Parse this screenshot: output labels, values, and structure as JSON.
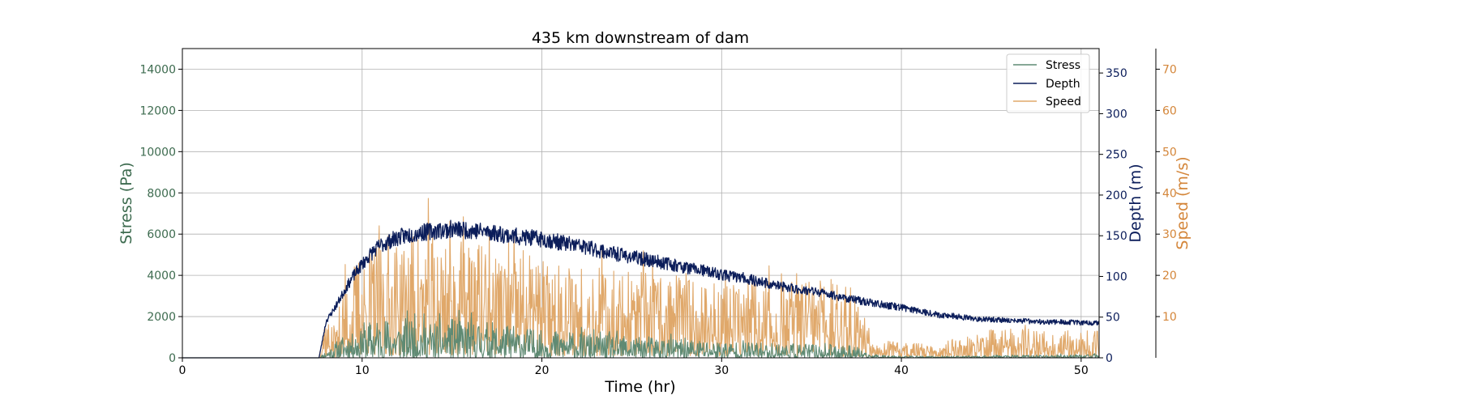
{
  "chart_data": {
    "type": "line",
    "title": "435 km downstream of dam",
    "xlabel": "Time (hr)",
    "xlim": [
      0,
      51
    ],
    "x_ticks": [
      0,
      10,
      20,
      30,
      40,
      50
    ],
    "grid": true,
    "legend_position": "top-right",
    "axes": {
      "stress": {
        "label": "Stress (Pa)",
        "lim": [
          0,
          15000
        ],
        "ticks": [
          0,
          2000,
          4000,
          6000,
          8000,
          10000,
          12000,
          14000
        ],
        "color": "#3d6b4f"
      },
      "depth": {
        "label": "Depth (m)",
        "lim": [
          0,
          380
        ],
        "ticks": [
          0,
          50,
          100,
          150,
          200,
          250,
          300,
          350
        ],
        "color": "#0b1d5a"
      },
      "speed": {
        "label": "Speed (m/s)",
        "lim": [
          0,
          75
        ],
        "ticks": [
          10,
          20,
          30,
          40,
          50,
          60,
          70
        ],
        "color": "#d4863a"
      }
    },
    "series": [
      {
        "name": "Stress",
        "axis": "stress",
        "color": "#5f8a73",
        "x": [
          0,
          7.6,
          8,
          9,
          10,
          11,
          12,
          13,
          14,
          15,
          16,
          17,
          18,
          19,
          20,
          22,
          24,
          26,
          28,
          30,
          32,
          34,
          36,
          37.5,
          38,
          40,
          42,
          45,
          48,
          51
        ],
        "y": [
          0,
          0,
          150,
          450,
          650,
          800,
          750,
          850,
          700,
          800,
          750,
          700,
          650,
          600,
          550,
          500,
          450,
          420,
          380,
          330,
          300,
          280,
          260,
          240,
          80,
          40,
          30,
          50,
          60,
          70
        ]
      },
      {
        "name": "Depth",
        "axis": "depth",
        "color": "#0b1d5a",
        "x": [
          0,
          7.6,
          8,
          8.5,
          9,
          9.5,
          10,
          10.5,
          11,
          12,
          13,
          14,
          15,
          16,
          17,
          18,
          19,
          20,
          21,
          22,
          23,
          24,
          25,
          26,
          27,
          28,
          29,
          30,
          31,
          32,
          33,
          34,
          35,
          36,
          37,
          38,
          39,
          40,
          41,
          42,
          43,
          44,
          45,
          46,
          47,
          48,
          49,
          50,
          51
        ],
        "y": [
          0,
          0,
          45,
          62,
          82,
          100,
          115,
          128,
          138,
          148,
          153,
          156,
          158,
          157,
          155,
          151,
          148,
          146,
          142,
          138,
          133,
          128,
          124,
          120,
          116,
          111,
          107,
          102,
          99,
          94,
          89,
          85,
          82,
          78,
          73,
          69,
          65,
          62,
          58,
          53,
          51,
          48,
          47,
          46,
          45,
          44,
          44,
          43,
          43
        ]
      },
      {
        "name": "Speed",
        "axis": "speed",
        "color": "#e0a86a",
        "x": [
          0,
          7.6,
          7.8,
          8.5,
          9,
          10,
          11,
          12,
          13,
          14,
          15,
          16,
          17,
          18,
          19,
          20,
          22,
          24,
          26,
          28,
          30,
          32,
          34,
          36,
          37.5,
          38,
          39,
          40,
          41,
          42,
          43,
          44,
          45,
          46,
          47,
          48,
          49,
          50,
          51
        ],
        "y": [
          0,
          0,
          5,
          3,
          8,
          11,
          12,
          12,
          13,
          13,
          13,
          12,
          12,
          11,
          11,
          10,
          10,
          9,
          9,
          9,
          8,
          8,
          8,
          8,
          7,
          4,
          2,
          1.5,
          1.5,
          1.5,
          2,
          2,
          3,
          3,
          3,
          3,
          3,
          3,
          3
        ]
      }
    ]
  }
}
